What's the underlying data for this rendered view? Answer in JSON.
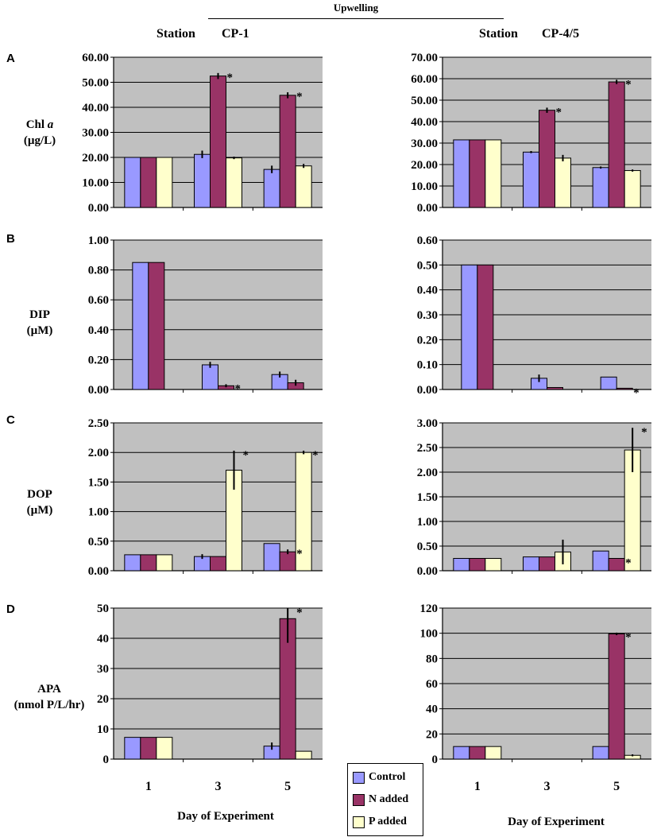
{
  "header": {
    "title": "Upwelling",
    "station_word": "Station",
    "left_station": "CP-1",
    "right_station": "CP-4/5"
  },
  "panels": [
    {
      "letter": "A",
      "ylabel_main": "Chl ",
      "ylabel_italic": "a",
      "ylabel_unit": "(µg/L)"
    },
    {
      "letter": "B",
      "ylabel_main": "DIP",
      "ylabel_italic": "",
      "ylabel_unit": "(µM)"
    },
    {
      "letter": "C",
      "ylabel_main": "DOP",
      "ylabel_italic": "",
      "ylabel_unit": "(µM)"
    },
    {
      "letter": "D",
      "ylabel_main": "APA",
      "ylabel_italic": "",
      "ylabel_unit": "(nmol P/L/hr)"
    }
  ],
  "x_axis": {
    "categories": [
      "1",
      "3",
      "5"
    ],
    "label": "Day of Experiment"
  },
  "legend": {
    "items": [
      {
        "label": "Control",
        "color": "#9999FF"
      },
      {
        "label": "N added",
        "color": "#993366"
      },
      {
        "label": "P added",
        "color": "#FFFFCC"
      }
    ]
  },
  "colors": {
    "plot_bg": "#C0C0C0",
    "grid": "#000000"
  },
  "chart_data": [
    {
      "id": "A-CP1",
      "type": "bar",
      "station": "CP-1",
      "variable": "Chl a",
      "ylim": [
        0,
        60
      ],
      "yticks": [
        0,
        10,
        20,
        30,
        40,
        50,
        60
      ],
      "decimals": 2,
      "categories": [
        "1",
        "3",
        "5"
      ],
      "series": [
        {
          "name": "Control",
          "values": [
            20,
            21.2,
            15.2
          ],
          "errors": [
            0,
            1.5,
            1.5
          ]
        },
        {
          "name": "N added",
          "values": [
            20,
            52.5,
            44.8
          ],
          "errors": [
            0,
            1.2,
            1.2
          ]
        },
        {
          "name": "P added",
          "values": [
            20,
            19.8,
            16.6
          ],
          "errors": [
            0,
            0.5,
            0.8
          ]
        }
      ],
      "sig": [
        {
          "cat": 1,
          "series": 1
        },
        {
          "cat": 2,
          "series": 1
        }
      ]
    },
    {
      "id": "A-CP45",
      "type": "bar",
      "station": "CP-4/5",
      "variable": "Chl a",
      "ylim": [
        0,
        70
      ],
      "yticks": [
        0,
        10,
        20,
        30,
        40,
        50,
        60,
        70
      ],
      "decimals": 2,
      "categories": [
        "1",
        "3",
        "5"
      ],
      "series": [
        {
          "name": "Control",
          "values": [
            31.5,
            25.8,
            18.6
          ],
          "errors": [
            0,
            0.5,
            0.5
          ]
        },
        {
          "name": "N added",
          "values": [
            31.5,
            45.3,
            58.5
          ],
          "errors": [
            0,
            1.2,
            1.0
          ]
        },
        {
          "name": "P added",
          "values": [
            31.5,
            23,
            17.2
          ],
          "errors": [
            0,
            1.5,
            0.5
          ]
        }
      ],
      "sig": [
        {
          "cat": 1,
          "series": 1
        },
        {
          "cat": 2,
          "series": 1
        }
      ]
    },
    {
      "id": "B-CP1",
      "type": "bar",
      "station": "CP-1",
      "variable": "DIP",
      "ylim": [
        0,
        1
      ],
      "yticks": [
        0,
        0.2,
        0.4,
        0.6,
        0.8,
        1.0
      ],
      "decimals": 2,
      "categories": [
        "1",
        "3",
        "5"
      ],
      "series": [
        {
          "name": "Control",
          "values": [
            0.85,
            0.165,
            0.1
          ],
          "errors": [
            0,
            0.02,
            0.02
          ]
        },
        {
          "name": "N added",
          "values": [
            0.85,
            0.025,
            0.045
          ],
          "errors": [
            0,
            0.01,
            0.02
          ]
        }
      ],
      "sig": [
        {
          "cat": 1,
          "series": 1
        }
      ]
    },
    {
      "id": "B-CP45",
      "type": "bar",
      "station": "CP-4/5",
      "variable": "DIP",
      "ylim": [
        0,
        0.6
      ],
      "yticks": [
        0,
        0.1,
        0.2,
        0.3,
        0.4,
        0.5,
        0.6
      ],
      "decimals": 2,
      "categories": [
        "1",
        "3",
        "5"
      ],
      "series": [
        {
          "name": "Control",
          "values": [
            0.5,
            0.045,
            0.05
          ],
          "errors": [
            0,
            0.015,
            0
          ]
        },
        {
          "name": "N added",
          "values": [
            0.5,
            0.008,
            0.005
          ],
          "errors": [
            0,
            0,
            0
          ]
        }
      ],
      "sig": [
        {
          "cat": 2,
          "series": 1
        }
      ]
    },
    {
      "id": "C-CP1",
      "type": "bar",
      "station": "CP-1",
      "variable": "DOP",
      "ylim": [
        0,
        2.5
      ],
      "yticks": [
        0,
        0.5,
        1.0,
        1.5,
        2.0,
        2.5
      ],
      "decimals": 2,
      "categories": [
        "1",
        "3",
        "5"
      ],
      "series": [
        {
          "name": "Control",
          "values": [
            0.27,
            0.24,
            0.46
          ],
          "errors": [
            0,
            0.04,
            0
          ]
        },
        {
          "name": "N added",
          "values": [
            0.27,
            0.24,
            0.32
          ],
          "errors": [
            0,
            0,
            0.04
          ]
        },
        {
          "name": "P added",
          "values": [
            0.27,
            1.7,
            2.0
          ],
          "errors": [
            0,
            0.33,
            0.03
          ]
        }
      ],
      "sig": [
        {
          "cat": 1,
          "series": 2
        },
        {
          "cat": 2,
          "series": 1
        },
        {
          "cat": 2,
          "series": 2
        }
      ]
    },
    {
      "id": "C-CP45",
      "type": "bar",
      "station": "CP-4/5",
      "variable": "DOP",
      "ylim": [
        0,
        3
      ],
      "yticks": [
        0,
        0.5,
        1.0,
        1.5,
        2.0,
        2.5,
        3.0
      ],
      "decimals": 2,
      "categories": [
        "1",
        "3",
        "5"
      ],
      "series": [
        {
          "name": "Control",
          "values": [
            0.25,
            0.28,
            0.4
          ],
          "errors": [
            0,
            0,
            0
          ]
        },
        {
          "name": "N added",
          "values": [
            0.25,
            0.28,
            0.25
          ],
          "errors": [
            0,
            0,
            0
          ]
        },
        {
          "name": "P added",
          "values": [
            0.25,
            0.38,
            2.45
          ],
          "errors": [
            0,
            0.25,
            0.45
          ]
        }
      ],
      "sig": [
        {
          "cat": 2,
          "series": 1
        },
        {
          "cat": 2,
          "series": 2
        }
      ]
    },
    {
      "id": "D-CP1",
      "type": "bar",
      "station": "CP-1",
      "variable": "APA",
      "ylim": [
        0,
        50
      ],
      "yticks": [
        0,
        10,
        20,
        30,
        40,
        50
      ],
      "decimals": 0,
      "categories": [
        "1",
        "3",
        "5"
      ],
      "series": [
        {
          "name": "Control",
          "values": [
            7.2,
            null,
            4.3
          ],
          "errors": [
            0,
            0,
            1.2
          ]
        },
        {
          "name": "N added",
          "values": [
            7.2,
            null,
            46.5
          ],
          "errors": [
            0,
            0,
            8
          ]
        },
        {
          "name": "P added",
          "values": [
            7.2,
            null,
            2.6
          ],
          "errors": [
            0,
            0,
            0
          ]
        }
      ],
      "sig": [
        {
          "cat": 2,
          "series": 1
        }
      ]
    },
    {
      "id": "D-CP45",
      "type": "bar",
      "station": "CP-4/5",
      "variable": "APA",
      "ylim": [
        0,
        120
      ],
      "yticks": [
        0,
        20,
        40,
        60,
        80,
        100,
        120
      ],
      "decimals": 0,
      "categories": [
        "1",
        "3",
        "5"
      ],
      "series": [
        {
          "name": "Control",
          "values": [
            10,
            null,
            10
          ],
          "errors": [
            0,
            0,
            0
          ]
        },
        {
          "name": "N added",
          "values": [
            10,
            null,
            99.5
          ],
          "errors": [
            0,
            0,
            1
          ]
        },
        {
          "name": "P added",
          "values": [
            10,
            null,
            3
          ],
          "errors": [
            0,
            0,
            0.8
          ]
        }
      ],
      "sig": [
        {
          "cat": 2,
          "series": 1
        }
      ]
    }
  ]
}
